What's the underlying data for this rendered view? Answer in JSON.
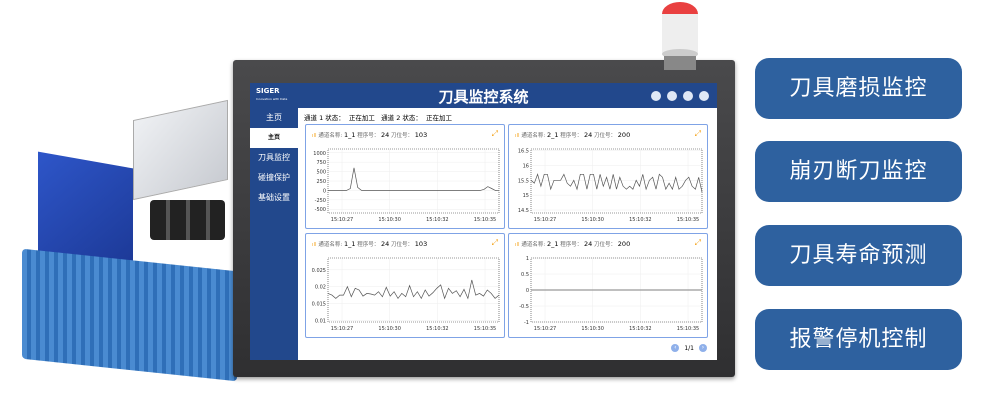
{
  "app": {
    "logo": "SIGER",
    "logo_tagline": "Innovation with Data",
    "title": "刀具监控系统"
  },
  "sidebar": {
    "items": [
      {
        "label": "主页"
      },
      {
        "label": "主页"
      },
      {
        "label": "刀具监控"
      },
      {
        "label": "碰撞保护"
      },
      {
        "label": "基础设置"
      }
    ],
    "active_index": 1
  },
  "status": {
    "ch1_label": "通道 1 状态：",
    "ch1_value": "正在加工",
    "ch2_label": "通道 2 状态：",
    "ch2_value": "正在加工"
  },
  "panels": [
    {
      "channel_label": "通道名称:",
      "channel": "1_1",
      "program_label": "程序号：",
      "program": "24",
      "tool_label": "刀位号：",
      "tool": "103"
    },
    {
      "channel_label": "通道名称:",
      "channel": "2_1",
      "program_label": "程序号：",
      "program": "24",
      "tool_label": "刀位号：",
      "tool": "200"
    },
    {
      "channel_label": "通道名称:",
      "channel": "1_1",
      "program_label": "程序号：",
      "program": "24",
      "tool_label": "刀位号：",
      "tool": "103"
    },
    {
      "channel_label": "通道名称:",
      "channel": "2_1",
      "program_label": "程序号：",
      "program": "24",
      "tool_label": "刀位号：",
      "tool": "200"
    }
  ],
  "pagination": {
    "label": "1/1"
  },
  "features": [
    "刀具磨损监控",
    "崩刃断刀监控",
    "刀具寿命预测",
    "报警停机控制"
  ],
  "colors": {
    "header": "#22488c",
    "feature_button": "#2e619f",
    "panel_border": "#7fa3e6",
    "accent": "#f5a623"
  },
  "chart_data": [
    {
      "type": "line",
      "x_ticks": [
        "15:10:27",
        "15:10:30",
        "15:10:32",
        "15:10:35"
      ],
      "yticks": [
        1000,
        750,
        500,
        250,
        0,
        -250,
        -500
      ],
      "ylim": [
        -600,
        1100
      ],
      "grid": true,
      "values": [
        0,
        0,
        0,
        0,
        0,
        0,
        50,
        600,
        80,
        0,
        0,
        0,
        0,
        0,
        0,
        0,
        0,
        0,
        0,
        0,
        0,
        0,
        0,
        0,
        0,
        0,
        0,
        0,
        0,
        0,
        0,
        0,
        0,
        0,
        0,
        0,
        0,
        0,
        0,
        0,
        0,
        0,
        30,
        100,
        50,
        0,
        -10
      ]
    },
    {
      "type": "line",
      "x_ticks": [
        "15:10:27",
        "15:10:30",
        "15:10:32",
        "15:10:35"
      ],
      "yticks": [
        16.5,
        16,
        15.5,
        15,
        14.5
      ],
      "ylim": [
        14.4,
        16.55
      ],
      "grid": true,
      "values": [
        15.5,
        15.4,
        15.7,
        15.3,
        15.7,
        15.7,
        15.2,
        15.5,
        15.5,
        15.5,
        15.7,
        15.4,
        15.3,
        15.5,
        15.2,
        15.7,
        15.7,
        15.2,
        15.7,
        15.7,
        15.2,
        15.7,
        15.3,
        15.6,
        15.2,
        15.7,
        15.2,
        15.6,
        15.3,
        15.2,
        15.3,
        15.2,
        15.5,
        15.3,
        15.7,
        15.2,
        15.5,
        15.6,
        15.2,
        15.7,
        15.6,
        15.2,
        15.4,
        15.2,
        15.6,
        15.2,
        15.3,
        15.5,
        15.6,
        15.3,
        15.2,
        15.6,
        15.1
      ]
    },
    {
      "type": "line",
      "x_ticks": [
        "15:10:27",
        "15:10:30",
        "15:10:32",
        "15:10:35"
      ],
      "yticks": [
        0.025,
        0.02,
        0.015,
        0.01
      ],
      "ylim": [
        0.0095,
        0.0285
      ],
      "grid": true,
      "values": [
        0.018,
        0.0175,
        0.0165,
        0.0175,
        0.0175,
        0.02,
        0.017,
        0.0195,
        0.019,
        0.0172,
        0.018,
        0.0178,
        0.0175,
        0.0185,
        0.017,
        0.0198,
        0.0172,
        0.0185,
        0.0165,
        0.018,
        0.017,
        0.0203,
        0.017,
        0.0185,
        0.0165,
        0.019,
        0.0172,
        0.0182,
        0.0195,
        0.0205,
        0.0165,
        0.0195,
        0.018,
        0.0188,
        0.017,
        0.0192,
        0.0165,
        0.022,
        0.0175,
        0.018,
        0.0172,
        0.019,
        0.018,
        0.0165,
        0.0175
      ]
    },
    {
      "type": "line",
      "x_ticks": [
        "15:10:27",
        "15:10:30",
        "15:10:32",
        "15:10:35"
      ],
      "yticks": [
        1,
        0.5,
        0,
        -0.5,
        -1
      ],
      "ylim": [
        -1,
        1
      ],
      "grid": true,
      "values": [
        0,
        0,
        0,
        0,
        0,
        0,
        0,
        0,
        0,
        0
      ]
    }
  ]
}
